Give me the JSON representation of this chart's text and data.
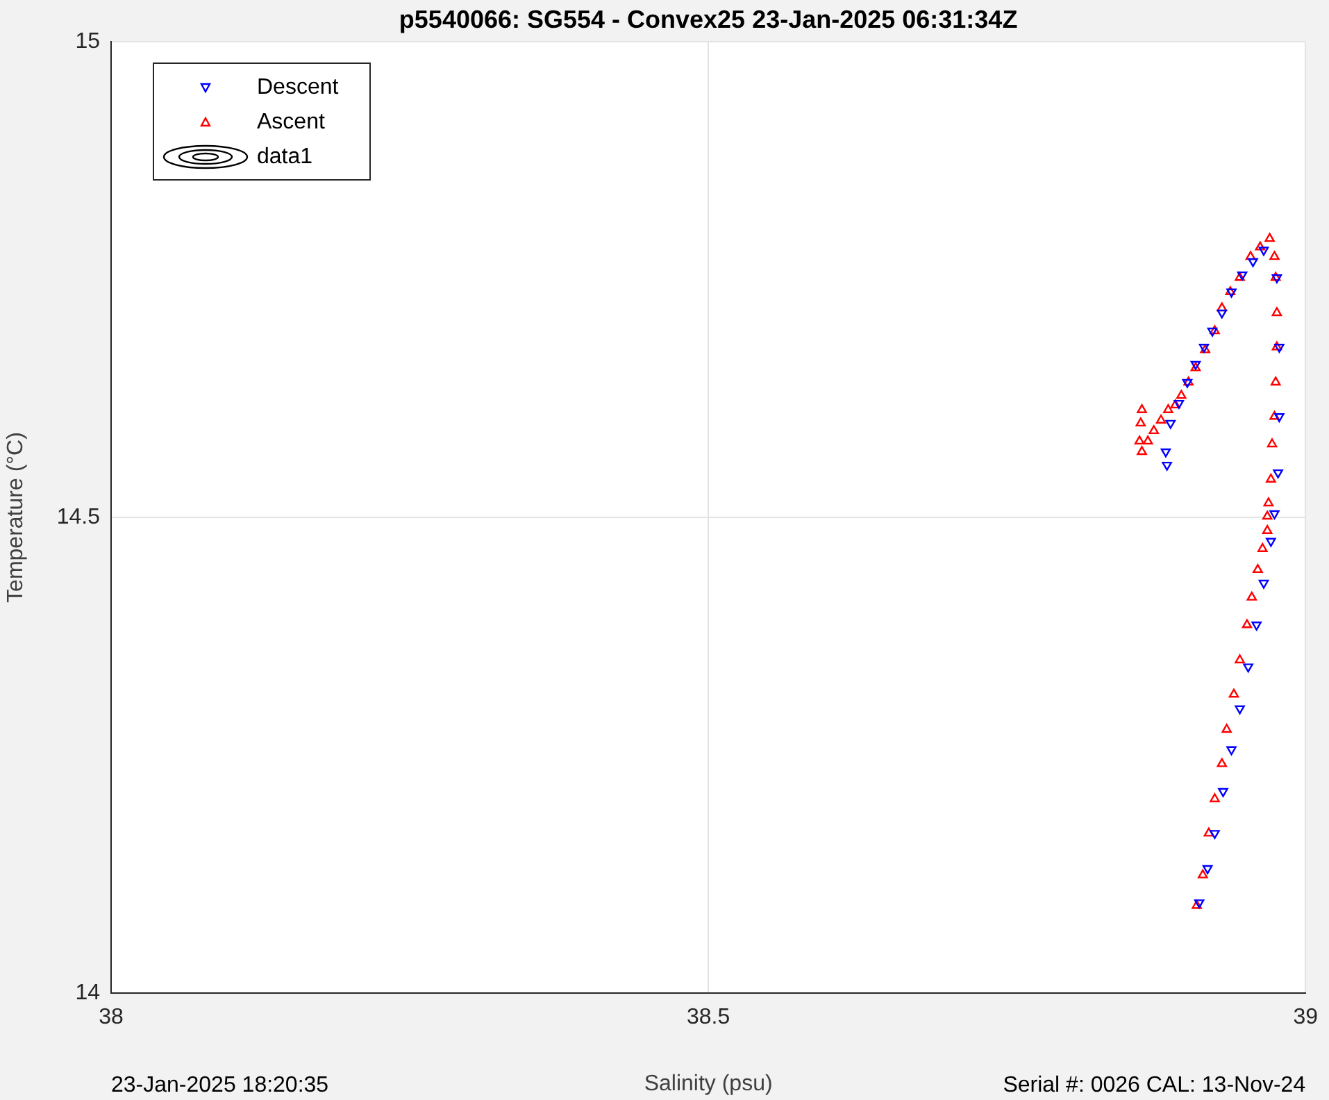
{
  "chart_data": {
    "type": "scatter",
    "title": "p5540066: SG554 - Convex25 23-Jan-2025 06:31:34Z",
    "xlabel": "Salinity (psu)",
    "ylabel": "Temperature (°C)",
    "annotations": [
      "23-Jan-2025 18:20:35",
      "Serial #: 0026 CAL: 13-Nov-24"
    ],
    "xlim": [
      38,
      39
    ],
    "ylim": [
      14,
      15
    ],
    "xticks": [
      38,
      38.5,
      39
    ],
    "yticks": [
      14,
      14.5,
      15
    ],
    "grid": true,
    "legend": "top left",
    "marker": "triangle",
    "series": [
      {
        "name": "Descent",
        "color": "#0000ff",
        "marker": "triangle-down",
        "x": [
          38.884,
          38.883,
          38.887,
          38.894,
          38.901,
          38.908,
          38.915,
          38.922,
          38.93,
          38.938,
          38.947,
          38.956,
          38.965,
          38.976,
          38.978,
          38.978,
          38.977,
          38.974,
          38.971,
          38.965,
          38.959,
          38.952,
          38.945,
          38.938,
          38.931,
          38.924,
          38.918,
          38.911
        ],
        "values": [
          14.555,
          14.569,
          14.599,
          14.62,
          14.642,
          14.661,
          14.679,
          14.696,
          14.715,
          14.737,
          14.755,
          14.769,
          14.781,
          14.752,
          14.679,
          14.606,
          14.547,
          14.504,
          14.475,
          14.431,
          14.387,
          14.343,
          14.299,
          14.256,
          14.212,
          14.168,
          14.131,
          14.095
        ]
      },
      {
        "name": "Ascent",
        "color": "#ff0000",
        "x": [
          38.909,
          38.914,
          38.919,
          38.924,
          38.93,
          38.934,
          38.94,
          38.945,
          38.951,
          38.955,
          38.96,
          38.964,
          38.968,
          38.968,
          38.969,
          38.971,
          38.972,
          38.974,
          38.975,
          38.976,
          38.976,
          38.975,
          38.974,
          38.97,
          38.962,
          38.954,
          38.945,
          38.937,
          38.93,
          38.924,
          38.916,
          38.908,
          38.902,
          38.896,
          38.891,
          38.885,
          38.879,
          38.873,
          38.868,
          38.863,
          38.861,
          38.862,
          38.863
        ],
        "values": [
          14.092,
          14.124,
          14.168,
          14.204,
          14.241,
          14.277,
          14.314,
          14.35,
          14.387,
          14.416,
          14.445,
          14.467,
          14.486,
          14.501,
          14.515,
          14.54,
          14.577,
          14.606,
          14.642,
          14.679,
          14.715,
          14.752,
          14.774,
          14.793,
          14.784,
          14.774,
          14.752,
          14.737,
          14.72,
          14.696,
          14.676,
          14.657,
          14.642,
          14.628,
          14.618,
          14.613,
          14.602,
          14.591,
          14.58,
          14.569,
          14.58,
          14.599,
          14.613
        ]
      },
      {
        "name": "data1",
        "type": "other",
        "color": "#000000"
      }
    ]
  }
}
